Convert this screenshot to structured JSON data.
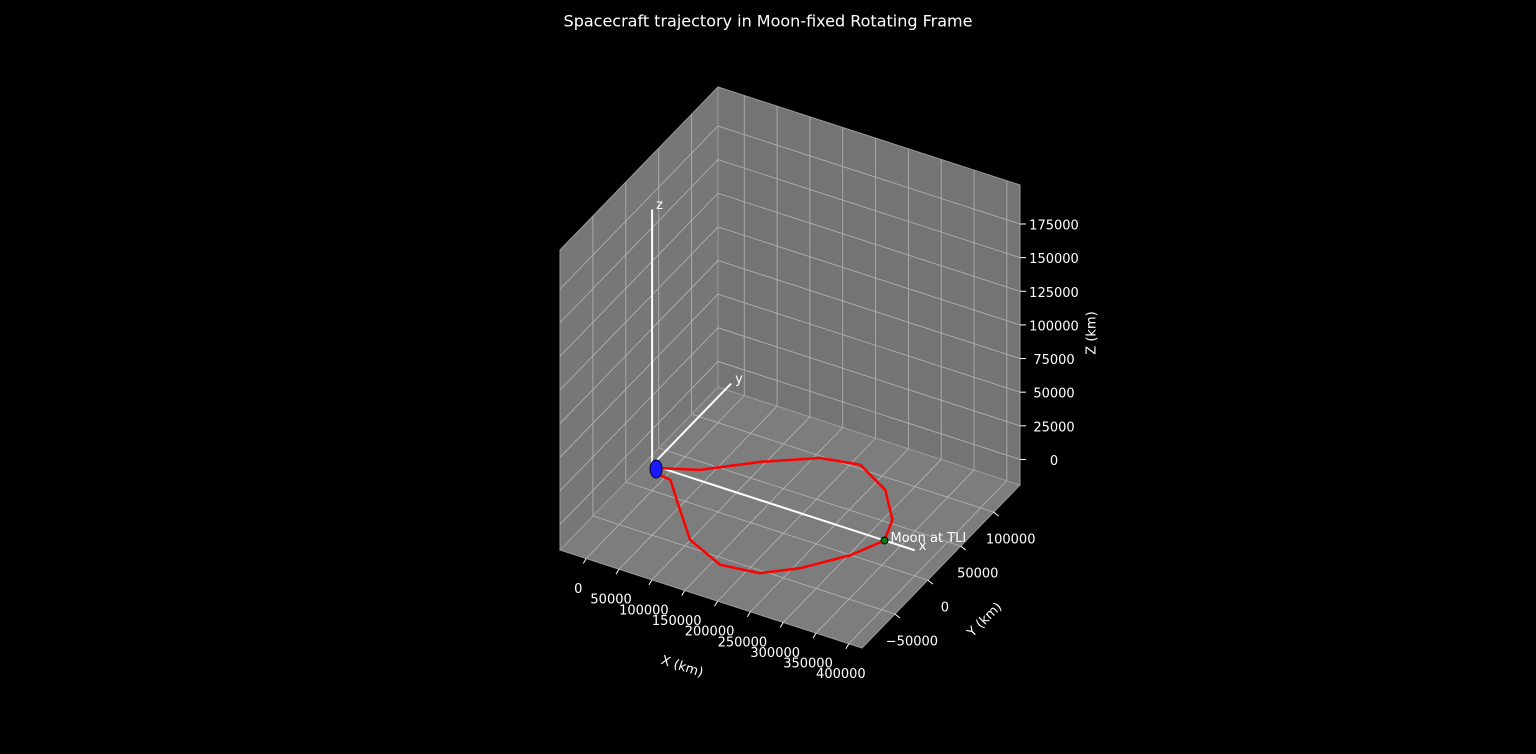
{
  "chart_data": {
    "type": "line3d",
    "title": "Spacecraft trajectory in Moon-fixed Rotating Frame",
    "xlabel": "X (km)",
    "ylabel": "Y (km)",
    "zlabel": "Z (km)",
    "xlim": [
      -40000,
      420000
    ],
    "ylim": [
      -100000,
      140000
    ],
    "zlim": [
      -19000,
      204000
    ],
    "xticks": [
      0,
      50000,
      100000,
      150000,
      200000,
      250000,
      300000,
      350000,
      400000
    ],
    "yticks": [
      {
        "value": -50000,
        "label": "−50000"
      },
      0,
      50000,
      100000
    ],
    "zticks": [
      0,
      25000,
      50000,
      75000,
      100000,
      125000,
      150000,
      175000
    ],
    "grid": true,
    "trajectory": {
      "color": "#ff0000",
      "x": [
        15000,
        61000,
        122000,
        187000,
        241000,
        298000,
        340000,
        354000,
        331000,
        287000,
        246000,
        191000,
        128000,
        75000,
        38000,
        18000
      ],
      "y": [
        0,
        12000,
        43000,
        69000,
        76000,
        57000,
        26000,
        0,
        -29000,
        -62000,
        -82000,
        -87000,
        -70000,
        -35000,
        -10000,
        -8000
      ],
      "z": [
        0,
        0,
        0,
        0,
        0,
        0,
        0,
        0,
        0,
        0,
        0,
        0,
        0,
        0,
        0,
        0
      ]
    },
    "earth": {
      "x": 0,
      "y": 0,
      "z": 0,
      "color": "#1a1aff"
    },
    "moon": {
      "x": 354000,
      "y": 0,
      "z": 0,
      "color": "#0a7a0a",
      "label": "Moon at TLI"
    },
    "frame_axes": [
      {
        "label": "x",
        "end": [
          400000,
          0,
          0
        ]
      },
      {
        "label": "y",
        "end": [
          0,
          120000,
          0
        ]
      },
      {
        "label": "z",
        "end": [
          0,
          0,
          190000
        ]
      }
    ]
  }
}
